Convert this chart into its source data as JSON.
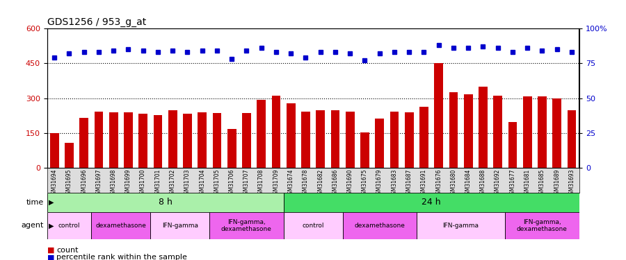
{
  "title": "GDS1256 / 953_g_at",
  "samples": [
    "GSM31694",
    "GSM31695",
    "GSM31696",
    "GSM31697",
    "GSM31698",
    "GSM31699",
    "GSM31700",
    "GSM31701",
    "GSM31702",
    "GSM31703",
    "GSM31704",
    "GSM31705",
    "GSM31706",
    "GSM31707",
    "GSM31708",
    "GSM31709",
    "GSM31674",
    "GSM31678",
    "GSM31682",
    "GSM31686",
    "GSM31690",
    "GSM31675",
    "GSM31679",
    "GSM31683",
    "GSM31687",
    "GSM31691",
    "GSM31676",
    "GSM31680",
    "GSM31684",
    "GSM31688",
    "GSM31692",
    "GSM31677",
    "GSM31681",
    "GSM31685",
    "GSM31689",
    "GSM31693"
  ],
  "counts": [
    148,
    108,
    215,
    242,
    240,
    240,
    234,
    228,
    248,
    233,
    238,
    236,
    168,
    236,
    293,
    310,
    278,
    242,
    248,
    248,
    243,
    152,
    213,
    241,
    238,
    263,
    452,
    325,
    318,
    350,
    312,
    198,
    308,
    308,
    300,
    248
  ],
  "percentiles": [
    79,
    82,
    83,
    83,
    84,
    85,
    84,
    83,
    84,
    83,
    84,
    84,
    78,
    84,
    86,
    83,
    82,
    79,
    83,
    83,
    82,
    77,
    82,
    83,
    83,
    83,
    88,
    86,
    86,
    87,
    86,
    83,
    86,
    84,
    85,
    83
  ],
  "bar_color": "#cc0000",
  "dot_color": "#0000cc",
  "ylim_left": [
    0,
    600
  ],
  "ylim_right": [
    0,
    100
  ],
  "yticks_left": [
    0,
    150,
    300,
    450,
    600
  ],
  "yticks_right": [
    0,
    25,
    50,
    75,
    100
  ],
  "ytick_labels_right": [
    "0",
    "25",
    "50",
    "75",
    "100%"
  ],
  "grid_values": [
    150,
    300,
    450
  ],
  "time_groups": [
    {
      "label": "8 h",
      "start": 0,
      "end": 16,
      "color": "#aaf0aa"
    },
    {
      "label": "24 h",
      "start": 16,
      "end": 36,
      "color": "#44dd66"
    }
  ],
  "agent_groups": [
    {
      "label": "control",
      "start": 0,
      "end": 3,
      "color": "#ffccff"
    },
    {
      "label": "dexamethasone",
      "start": 3,
      "end": 7,
      "color": "#ee66ee"
    },
    {
      "label": "IFN-gamma",
      "start": 7,
      "end": 11,
      "color": "#ffccff"
    },
    {
      "label": "IFN-gamma,\ndexamethasone",
      "start": 11,
      "end": 16,
      "color": "#ee66ee"
    },
    {
      "label": "control",
      "start": 16,
      "end": 20,
      "color": "#ffccff"
    },
    {
      "label": "dexamethasone",
      "start": 20,
      "end": 25,
      "color": "#ee66ee"
    },
    {
      "label": "IFN-gamma",
      "start": 25,
      "end": 31,
      "color": "#ffccff"
    },
    {
      "label": "IFN-gamma,\ndexamethasone",
      "start": 31,
      "end": 36,
      "color": "#ee66ee"
    }
  ],
  "legend_count_color": "#cc0000",
  "legend_pct_color": "#0000cc",
  "plot_bg_color": "#ffffff",
  "tick_label_bg": "#dddddd"
}
